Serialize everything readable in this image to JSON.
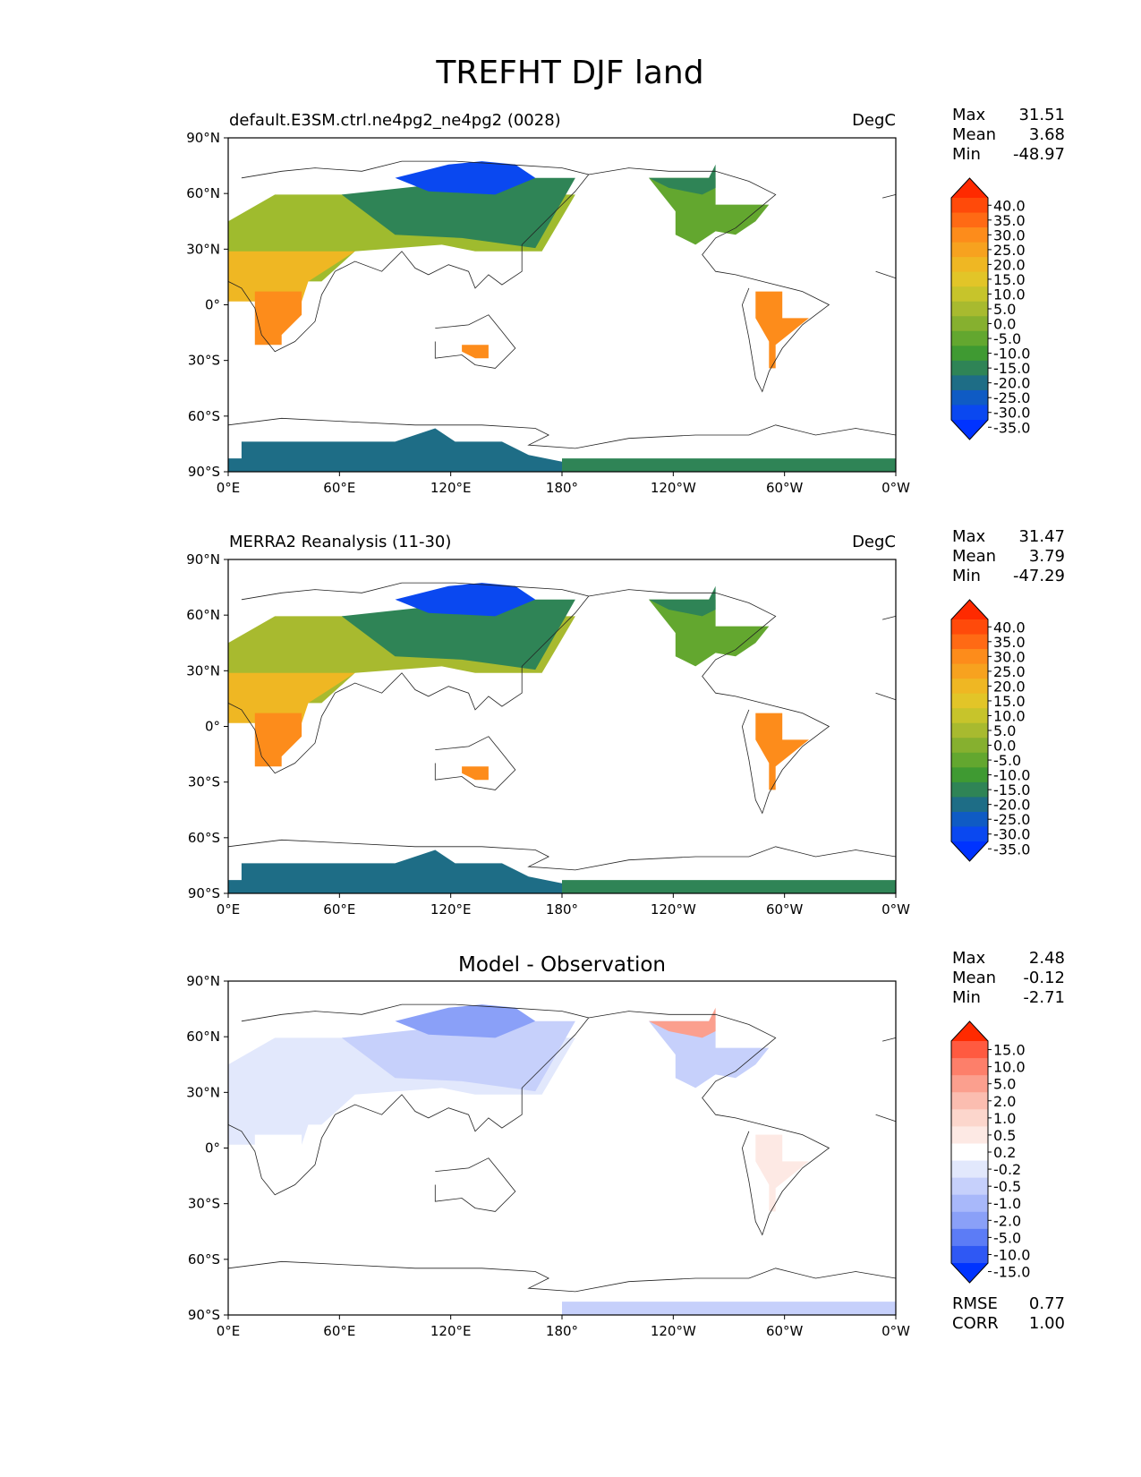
{
  "figure": {
    "title": "TREFHT DJF land"
  },
  "axes": {
    "lat_ticks": [
      "90°N",
      "60°N",
      "30°N",
      "0°",
      "30°S",
      "60°S",
      "90°S"
    ],
    "lon_ticks": [
      "0°E",
      "60°E",
      "120°E",
      "180°",
      "120°W",
      "60°W",
      "0°W"
    ]
  },
  "panels": [
    {
      "id": "test",
      "title_left": "default.E3SM.ctrl.ne4pg2_ne4pg2 (0028)",
      "title_center": "",
      "units": "DegC",
      "stats": [
        {
          "label": "Max",
          "value": "31.51"
        },
        {
          "label": "Mean",
          "value": "3.68"
        },
        {
          "label": "Min",
          "value": "-48.97"
        }
      ],
      "colorbar": {
        "levels": [
          "40.0",
          "35.0",
          "30.0",
          "25.0",
          "20.0",
          "15.0",
          "10.0",
          "5.0",
          "0.0",
          "-5.0",
          "-10.0",
          "-15.0",
          "-20.0",
          "-25.0",
          "-30.0",
          "-35.0"
        ],
        "colors": [
          "#ff2a00",
          "#ff4a0a",
          "#ff6a14",
          "#fd8c1b",
          "#f7a21f",
          "#efb723",
          "#e2c528",
          "#c7c42b",
          "#a8ba2f",
          "#86b02f",
          "#63a72f",
          "#3f9a32",
          "#2f8456",
          "#1e6d86",
          "#0f5bc4",
          "#0a48f0",
          "#0033ff"
        ]
      },
      "regions": [
        {
          "name": "europe-asia-band",
          "color": "#9fbb2e"
        },
        {
          "name": "siberia",
          "color": "#2f8456"
        },
        {
          "name": "arctic-siberia",
          "color": "#0a48f0"
        },
        {
          "name": "north-africa",
          "color": "#efb723"
        },
        {
          "name": "central-africa",
          "color": "#fd8c1b"
        },
        {
          "name": "australia",
          "color": "#fd8c1b"
        },
        {
          "name": "south-america",
          "color": "#fd8c1b"
        },
        {
          "name": "north-america",
          "color": "#63a72f"
        },
        {
          "name": "canada-north",
          "color": "#2f8456"
        },
        {
          "name": "antarctica-east",
          "color": "#1e6d86"
        },
        {
          "name": "antarctica-west",
          "color": "#2f8456"
        }
      ]
    },
    {
      "id": "reference",
      "title_left": "MERRA2 Reanalysis (11-30)",
      "title_center": "",
      "units": "DegC",
      "stats": [
        {
          "label": "Max",
          "value": "31.47"
        },
        {
          "label": "Mean",
          "value": "3.79"
        },
        {
          "label": "Min",
          "value": "-47.29"
        }
      ],
      "colorbar": {
        "levels": [
          "40.0",
          "35.0",
          "30.0",
          "25.0",
          "20.0",
          "15.0",
          "10.0",
          "5.0",
          "0.0",
          "-5.0",
          "-10.0",
          "-15.0",
          "-20.0",
          "-25.0",
          "-30.0",
          "-35.0"
        ],
        "colors": [
          "#ff2a00",
          "#ff4a0a",
          "#ff6a14",
          "#fd8c1b",
          "#f7a21f",
          "#efb723",
          "#e2c528",
          "#c7c42b",
          "#a8ba2f",
          "#86b02f",
          "#63a72f",
          "#3f9a32",
          "#2f8456",
          "#1e6d86",
          "#0f5bc4",
          "#0a48f0",
          "#0033ff"
        ]
      },
      "regions": [
        {
          "name": "europe-asia-band",
          "color": "#a8ba2f"
        },
        {
          "name": "siberia",
          "color": "#2f8456"
        },
        {
          "name": "arctic-siberia",
          "color": "#0a48f0"
        },
        {
          "name": "north-africa",
          "color": "#efb723"
        },
        {
          "name": "central-africa",
          "color": "#fd8c1b"
        },
        {
          "name": "australia",
          "color": "#fd8c1b"
        },
        {
          "name": "south-america",
          "color": "#fd8c1b"
        },
        {
          "name": "north-america",
          "color": "#63a72f"
        },
        {
          "name": "canada-north",
          "color": "#2f8456"
        },
        {
          "name": "antarctica-east",
          "color": "#1e6d86"
        },
        {
          "name": "antarctica-west",
          "color": "#2f8456"
        }
      ]
    },
    {
      "id": "difference",
      "title_left": "",
      "title_center": "Model - Observation",
      "units": "",
      "stats": [
        {
          "label": "Max",
          "value": "2.48"
        },
        {
          "label": "Mean",
          "value": "-0.12"
        },
        {
          "label": "Min",
          "value": "-2.71"
        }
      ],
      "extra_stats": [
        {
          "label": "RMSE",
          "value": "0.77"
        },
        {
          "label": "CORR",
          "value": "1.00"
        }
      ],
      "colorbar": {
        "levels": [
          "15.0",
          "10.0",
          "5.0",
          "2.0",
          "1.0",
          "0.5",
          "0.2",
          "-0.2",
          "-0.5",
          "-1.0",
          "-2.0",
          "-5.0",
          "-10.0",
          "-15.0"
        ],
        "colors": [
          "#ff2a00",
          "#ff5a40",
          "#fd7f6a",
          "#fb9f8e",
          "#fbbdb0",
          "#fcd6cc",
          "#fde9e4",
          "#ffffff",
          "#e2e8fc",
          "#c6d0fb",
          "#a8b8fa",
          "#8aa0f8",
          "#5c7cf6",
          "#2f58f4",
          "#0033ff"
        ]
      },
      "regions": [
        {
          "name": "europe-asia-band",
          "color": "#e2e8fc"
        },
        {
          "name": "siberia",
          "color": "#c6d0fb"
        },
        {
          "name": "arctic-siberia",
          "color": "#8aa0f8"
        },
        {
          "name": "north-africa",
          "color": "#e2e8fc"
        },
        {
          "name": "central-africa",
          "color": "#ffffff"
        },
        {
          "name": "australia",
          "color": "#ffffff"
        },
        {
          "name": "south-america",
          "color": "#fde9e4"
        },
        {
          "name": "north-america",
          "color": "#c6d0fb"
        },
        {
          "name": "canada-north",
          "color": "#fb9f8e"
        },
        {
          "name": "antarctica-east",
          "color": "#ffffff"
        },
        {
          "name": "antarctica-west",
          "color": "#c6d0fb"
        }
      ]
    }
  ]
}
